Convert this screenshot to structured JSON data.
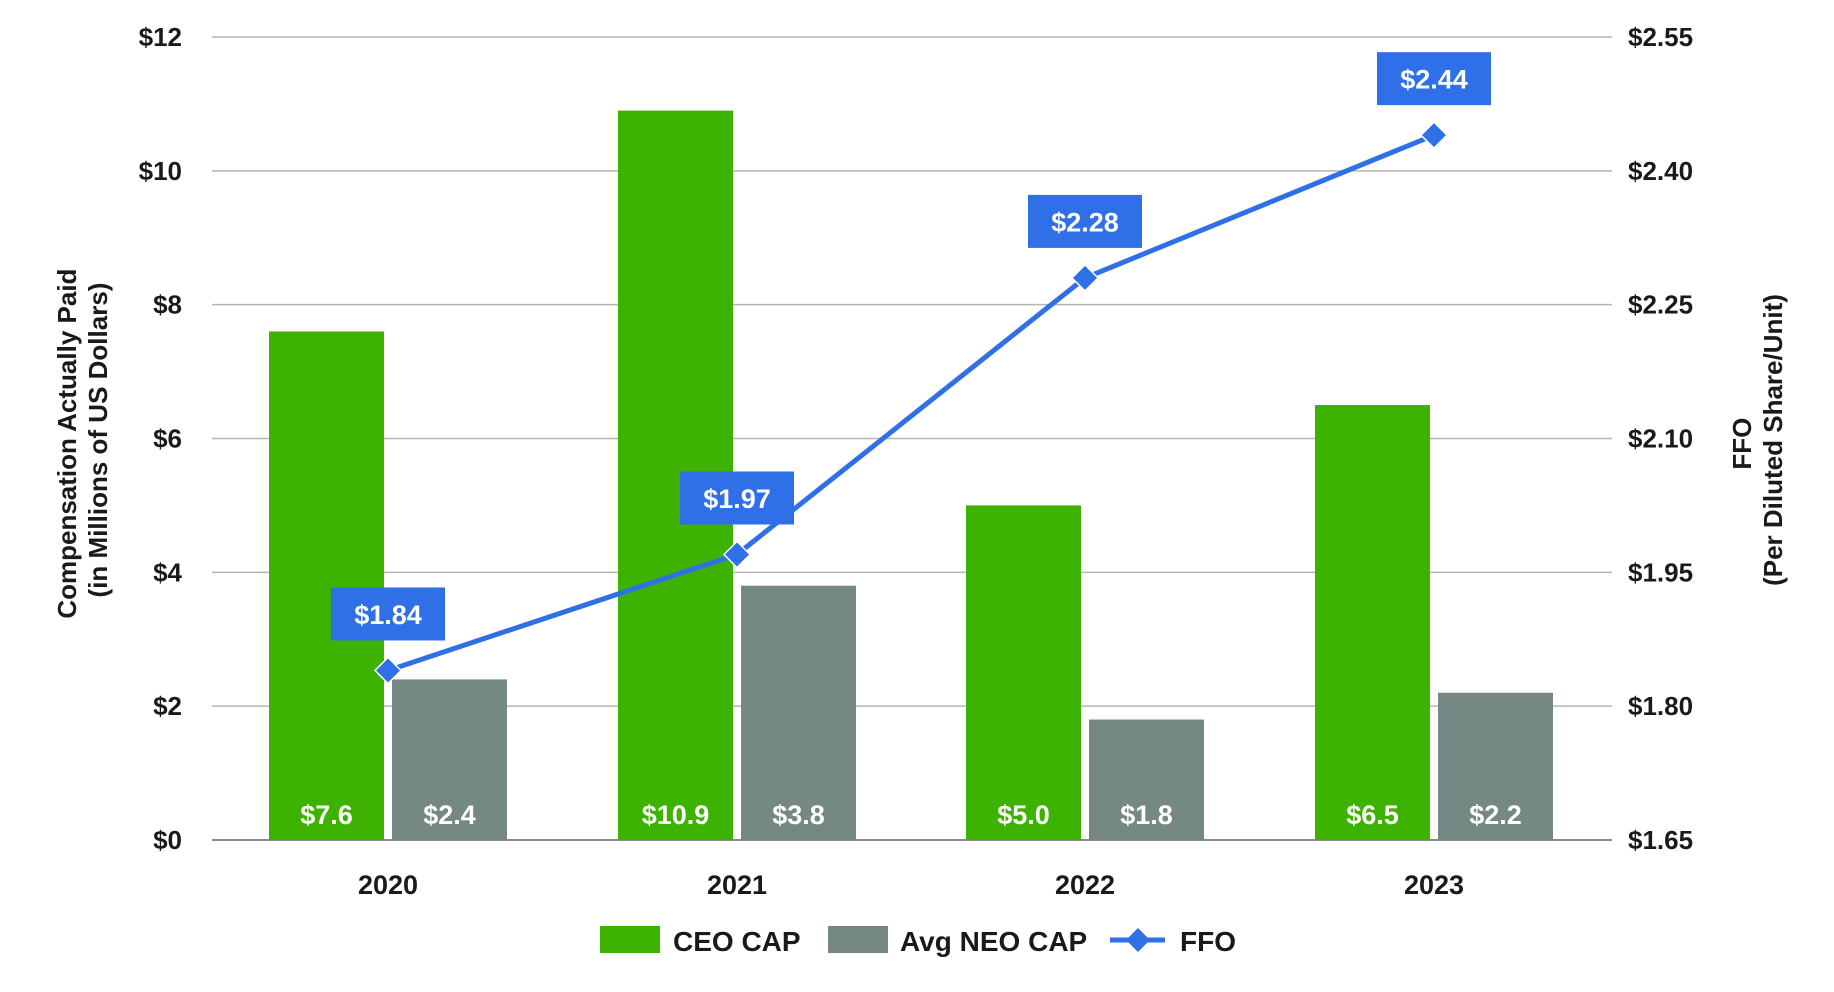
{
  "chart_data": {
    "type": "bar+line",
    "categories": [
      "2020",
      "2021",
      "2022",
      "2023"
    ],
    "series": [
      {
        "name": "CEO CAP",
        "axis": "left",
        "type": "bar",
        "color": "#3db200",
        "values": [
          7.6,
          10.9,
          5.0,
          6.5
        ],
        "labels": [
          "$7.6",
          "$10.9",
          "$5.0",
          "$6.5"
        ]
      },
      {
        "name": "Avg NEO CAP",
        "axis": "left",
        "type": "bar",
        "color": "#758884",
        "values": [
          2.4,
          3.8,
          1.8,
          2.2
        ],
        "labels": [
          "$2.4",
          "$3.8",
          "$1.8",
          "$2.2"
        ]
      },
      {
        "name": "FFO",
        "axis": "right",
        "type": "line",
        "color": "#2f6fe8",
        "values": [
          1.84,
          1.97,
          2.28,
          2.44
        ],
        "labels": [
          "$1.84",
          "$1.97",
          "$2.28",
          "$2.44"
        ]
      }
    ],
    "y_left": {
      "label_line1": "Compensation Actually Paid",
      "label_line2": "(in Millions of US Dollars)",
      "range": [
        0,
        12
      ],
      "ticks": [
        0,
        2,
        4,
        6,
        8,
        10,
        12
      ],
      "tick_labels": [
        "$0",
        "$2",
        "$4",
        "$6",
        "$8",
        "$10",
        "$12"
      ]
    },
    "y_right": {
      "label_line1": "FFO",
      "label_line2": "(Per Diluted Share/Unit)",
      "range": [
        1.65,
        2.55
      ],
      "ticks": [
        1.65,
        1.8,
        1.95,
        2.1,
        2.25,
        2.4,
        2.55
      ],
      "tick_labels": [
        "$1.65",
        "$1.80",
        "$1.95",
        "$2.10",
        "$2.25",
        "$2.40",
        "$2.55"
      ]
    },
    "grid": true,
    "legend": {
      "placement": "bottom-center",
      "entries": [
        "CEO CAP",
        "Avg NEO CAP",
        "FFO"
      ]
    }
  }
}
